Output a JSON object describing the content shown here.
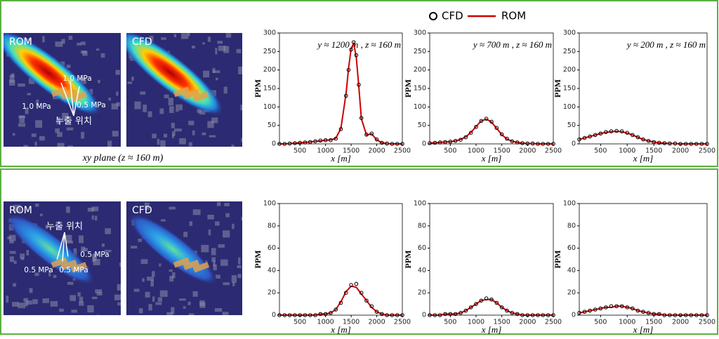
{
  "maps": [
    {
      "label": "ROM",
      "annotations": [
        "1.0 MPa",
        "1.0 MPa",
        "0.5 MPa",
        "누출 위치"
      ]
    },
    {
      "label": "CFD",
      "annotations": []
    },
    {
      "label": "ROM",
      "annotations": [
        "누출 위치",
        "0.5 MPa",
        "0.5 MPa",
        "0.5 MPa"
      ]
    },
    {
      "label": "CFD",
      "annotations": []
    }
  ],
  "caption": "xy plane (z ≈ 160 m)",
  "chart_data": [
    {
      "type": "line",
      "annotation": "y ≈ 1200 m , z ≈ 160 m",
      "xlabel": "x [m]",
      "ylabel": "PPM",
      "x": [
        100,
        200,
        300,
        400,
        500,
        600,
        700,
        800,
        900,
        1000,
        1100,
        1200,
        1300,
        1400,
        1450,
        1500,
        1550,
        1600,
        1650,
        1700,
        1800,
        1900,
        2000,
        2100,
        2200,
        2300,
        2400,
        2500
      ],
      "series": [
        {
          "name": "CFD",
          "color": "#000000",
          "style": "markers",
          "values": [
            0,
            0,
            1,
            2,
            3,
            4,
            5,
            7,
            9,
            10,
            10,
            14,
            40,
            130,
            200,
            255,
            275,
            240,
            160,
            70,
            25,
            28,
            12,
            3,
            1,
            0,
            0,
            0
          ]
        },
        {
          "name": "ROM",
          "color": "#cc0000",
          "style": "line",
          "values": [
            0,
            0,
            1,
            2,
            3,
            4,
            5,
            7,
            8,
            10,
            11,
            15,
            42,
            135,
            205,
            258,
            272,
            235,
            155,
            68,
            24,
            27,
            11,
            3,
            1,
            0,
            0,
            0
          ]
        }
      ],
      "xlim": [
        100,
        2500
      ],
      "xticks": [
        500,
        1000,
        1500,
        2000,
        2500
      ],
      "ylim": [
        0,
        300
      ],
      "yticks": [
        0,
        50,
        100,
        150,
        200,
        250,
        300
      ]
    },
    {
      "type": "line",
      "annotation": "y ≈ 700 m , z ≈ 160 m",
      "xlabel": "x [m]",
      "ylabel": "PPM",
      "x": [
        100,
        200,
        300,
        400,
        500,
        600,
        700,
        800,
        900,
        1000,
        1100,
        1200,
        1300,
        1400,
        1500,
        1600,
        1700,
        1800,
        1900,
        2000,
        2100,
        2200,
        2300,
        2400,
        2500
      ],
      "series": [
        {
          "name": "CFD",
          "color": "#000000",
          "style": "markers",
          "values": [
            2,
            3,
            4,
            5,
            6,
            8,
            11,
            18,
            30,
            46,
            62,
            68,
            60,
            43,
            26,
            14,
            7,
            4,
            2,
            1,
            1,
            0,
            0,
            0,
            0
          ]
        },
        {
          "name": "ROM",
          "color": "#cc0000",
          "style": "line",
          "values": [
            2,
            3,
            4,
            5,
            6,
            8,
            12,
            19,
            31,
            47,
            62,
            67,
            59,
            42,
            25,
            13,
            7,
            4,
            2,
            1,
            1,
            0,
            0,
            0,
            0
          ]
        }
      ],
      "xlim": [
        100,
        2500
      ],
      "xticks": [
        500,
        1000,
        1500,
        2000,
        2500
      ],
      "ylim": [
        0,
        300
      ],
      "yticks": [
        0,
        50,
        100,
        150,
        200,
        250,
        300
      ]
    },
    {
      "type": "line",
      "annotation": "y ≈ 200 m , z ≈ 160 m",
      "xlabel": "x [m]",
      "ylabel": "PPM",
      "x": [
        100,
        200,
        300,
        400,
        500,
        600,
        700,
        800,
        900,
        1000,
        1100,
        1200,
        1300,
        1400,
        1500,
        1600,
        1700,
        1800,
        1900,
        2000,
        2100,
        2200,
        2300,
        2400,
        2500
      ],
      "series": [
        {
          "name": "CFD",
          "color": "#000000",
          "style": "markers",
          "values": [
            12,
            16,
            20,
            24,
            28,
            32,
            34,
            35,
            34,
            30,
            24,
            18,
            12,
            8,
            5,
            3,
            2,
            1,
            1,
            0,
            0,
            0,
            0,
            0,
            0
          ]
        },
        {
          "name": "ROM",
          "color": "#cc0000",
          "style": "line",
          "values": [
            12,
            16,
            20,
            24,
            28,
            31,
            33,
            34,
            33,
            29,
            24,
            18,
            12,
            8,
            5,
            3,
            2,
            1,
            1,
            0,
            0,
            0,
            0,
            0,
            0
          ]
        }
      ],
      "xlim": [
        100,
        2500
      ],
      "xticks": [
        500,
        1000,
        1500,
        2000,
        2500
      ],
      "ylim": [
        0,
        300
      ],
      "yticks": [
        0,
        50,
        100,
        150,
        200,
        250,
        300
      ]
    },
    {
      "type": "line",
      "xlabel": "x [m]",
      "ylabel": "PPM",
      "x": [
        100,
        200,
        300,
        400,
        500,
        600,
        700,
        800,
        900,
        1000,
        1100,
        1200,
        1300,
        1400,
        1500,
        1600,
        1700,
        1800,
        1900,
        2000,
        2100,
        2200,
        2300,
        2400,
        2500
      ],
      "series": [
        {
          "name": "CFD",
          "color": "#000000",
          "style": "markers",
          "values": [
            0,
            0,
            0,
            0,
            0,
            0,
            0,
            0,
            1,
            1,
            2,
            5,
            11,
            20,
            27,
            28,
            20,
            13,
            8,
            3,
            1,
            0,
            0,
            0,
            0
          ]
        },
        {
          "name": "ROM",
          "color": "#cc0000",
          "style": "line",
          "values": [
            0,
            0,
            0,
            0,
            0,
            0,
            0,
            0,
            1,
            1,
            2,
            5,
            12,
            21,
            26,
            25,
            19,
            13,
            7,
            3,
            1,
            0,
            0,
            0,
            0
          ]
        }
      ],
      "xlim": [
        100,
        2500
      ],
      "xticks": [
        500,
        1000,
        1500,
        2000,
        2500
      ],
      "ylim": [
        0,
        100
      ],
      "yticks": [
        0,
        20,
        40,
        60,
        80,
        100
      ]
    },
    {
      "type": "line",
      "xlabel": "x [m]",
      "ylabel": "PPM",
      "x": [
        100,
        200,
        300,
        400,
        500,
        600,
        700,
        800,
        900,
        1000,
        1100,
        1200,
        1300,
        1400,
        1500,
        1600,
        1700,
        1800,
        1900,
        2000,
        2100,
        2200,
        2300,
        2400,
        2500
      ],
      "series": [
        {
          "name": "CFD",
          "color": "#000000",
          "style": "markers",
          "values": [
            0,
            0,
            0,
            1,
            1,
            1,
            2,
            4,
            7,
            10,
            13,
            15,
            14,
            11,
            7,
            4,
            2,
            1,
            0,
            0,
            0,
            0,
            0,
            0,
            0
          ]
        },
        {
          "name": "ROM",
          "color": "#cc0000",
          "style": "line",
          "values": [
            0,
            0,
            0,
            1,
            1,
            1,
            2,
            4,
            7,
            10,
            13,
            14,
            14,
            11,
            7,
            4,
            2,
            1,
            0,
            0,
            0,
            0,
            0,
            0,
            0
          ]
        }
      ],
      "xlim": [
        100,
        2500
      ],
      "xticks": [
        500,
        1000,
        1500,
        2000,
        2500
      ],
      "ylim": [
        0,
        100
      ],
      "yticks": [
        0,
        20,
        40,
        60,
        80,
        100
      ]
    },
    {
      "type": "line",
      "xlabel": "x [m]",
      "ylabel": "PPM",
      "x": [
        100,
        200,
        300,
        400,
        500,
        600,
        700,
        800,
        900,
        1000,
        1100,
        1200,
        1300,
        1400,
        1500,
        1600,
        1700,
        1800,
        1900,
        2000,
        2100,
        2200,
        2300,
        2400,
        2500
      ],
      "series": [
        {
          "name": "CFD",
          "color": "#000000",
          "style": "markers",
          "values": [
            2,
            3,
            4,
            5,
            6,
            7,
            8,
            8,
            8,
            7,
            6,
            4,
            3,
            2,
            1,
            1,
            0,
            0,
            0,
            0,
            0,
            0,
            0,
            0,
            0
          ]
        },
        {
          "name": "ROM",
          "color": "#cc0000",
          "style": "line",
          "values": [
            2,
            3,
            4,
            5,
            6,
            7,
            7,
            8,
            8,
            7,
            6,
            4,
            3,
            2,
            1,
            1,
            0,
            0,
            0,
            0,
            0,
            0,
            0,
            0,
            0
          ]
        }
      ],
      "xlim": [
        100,
        2500
      ],
      "xticks": [
        500,
        1000,
        1500,
        2000,
        2500
      ],
      "ylim": [
        0,
        100
      ],
      "yticks": [
        0,
        20,
        40,
        60,
        80,
        100
      ]
    }
  ]
}
